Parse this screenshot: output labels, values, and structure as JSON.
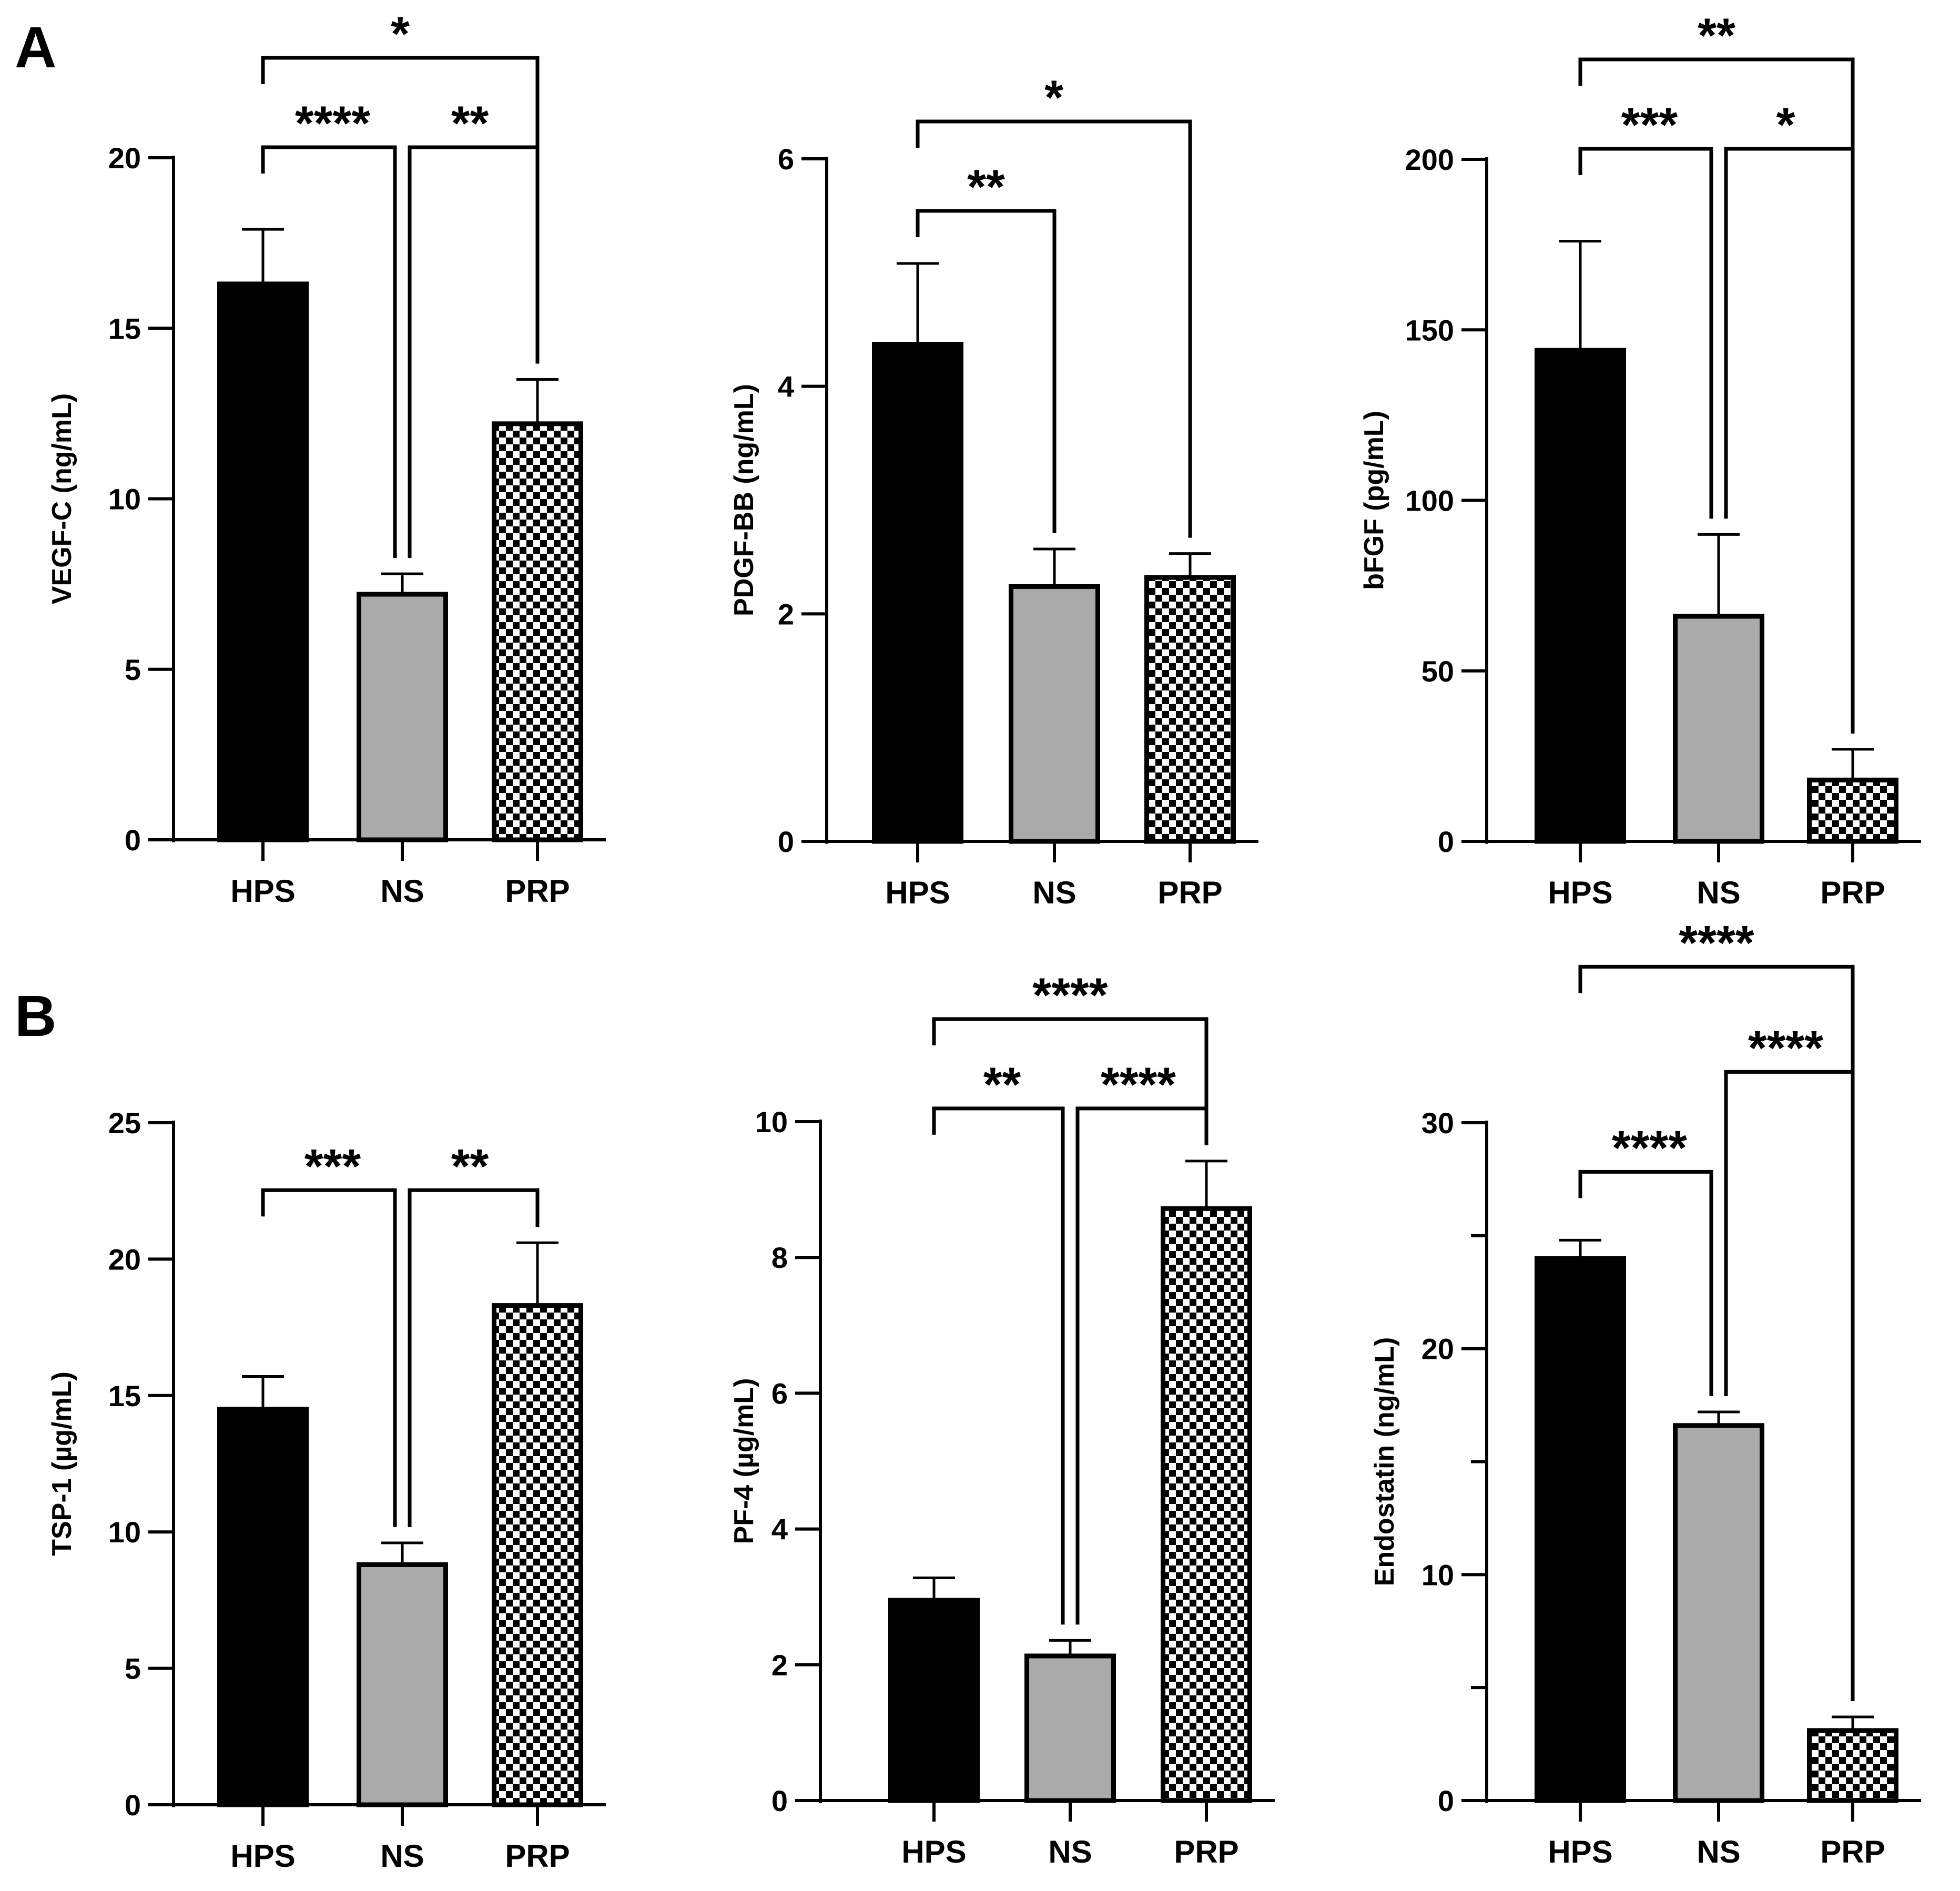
{
  "figure": {
    "panel_labels": [
      "A",
      "B"
    ]
  },
  "colors": {
    "HPS": "#000000",
    "NS": "#aaaaaa",
    "PRP_dark": "#000000",
    "PRP_light": "#ffffff",
    "stroke": "#000000"
  },
  "chart_data": [
    {
      "type": "bar",
      "panel": "A",
      "title": "",
      "ylabel": "VEGF-C (ng/mL)",
      "categories": [
        "HPS",
        "NS",
        "PRP"
      ],
      "values": [
        16.3,
        7.2,
        12.2
      ],
      "errors": [
        1.6,
        0.6,
        1.3
      ],
      "ylim": [
        0,
        20
      ],
      "yticks": [
        0,
        5,
        10,
        15,
        20
      ],
      "grid": false,
      "significance": [
        {
          "from": 0,
          "to": 1,
          "label": "****"
        },
        {
          "from": 1,
          "to": 2,
          "label": "**"
        },
        {
          "from": 0,
          "to": 2,
          "label": "*"
        }
      ]
    },
    {
      "type": "bar",
      "panel": "A",
      "title": "",
      "ylabel": "PDGF-BB (ng/mL)",
      "categories": [
        "HPS",
        "NS",
        "PRP"
      ],
      "values": [
        4.37,
        2.24,
        2.32
      ],
      "errors": [
        0.71,
        0.33,
        0.21
      ],
      "ylim": [
        0,
        6
      ],
      "yticks": [
        0,
        2,
        4,
        6
      ],
      "grid": false,
      "significance": [
        {
          "from": 0,
          "to": 1,
          "label": "**"
        },
        {
          "from": 0,
          "to": 2,
          "label": "*"
        }
      ]
    },
    {
      "type": "bar",
      "panel": "A",
      "title": "",
      "ylabel": "bFGF (pg/mL)",
      "categories": [
        "HPS",
        "NS",
        "PRP"
      ],
      "values": [
        144,
        66,
        18
      ],
      "errors": [
        32,
        24,
        9
      ],
      "ylim": [
        0,
        200
      ],
      "yticks": [
        0,
        50,
        100,
        150,
        200
      ],
      "grid": false,
      "significance": [
        {
          "from": 0,
          "to": 1,
          "label": "***"
        },
        {
          "from": 1,
          "to": 2,
          "label": "*"
        },
        {
          "from": 0,
          "to": 2,
          "label": "**"
        }
      ]
    },
    {
      "type": "bar",
      "panel": "B",
      "title": "",
      "ylabel": "TSP-1 (µg/mL)",
      "categories": [
        "HPS",
        "NS",
        "PRP"
      ],
      "values": [
        14.5,
        8.8,
        18.3
      ],
      "errors": [
        1.2,
        0.8,
        2.3
      ],
      "ylim": [
        0,
        25
      ],
      "yticks": [
        0,
        5,
        10,
        15,
        20,
        25
      ],
      "grid": false,
      "significance": [
        {
          "from": 0,
          "to": 1,
          "label": "***"
        },
        {
          "from": 1,
          "to": 2,
          "label": "**"
        }
      ]
    },
    {
      "type": "bar",
      "panel": "B",
      "title": "",
      "ylabel": "PF-4 (µg/mL)",
      "categories": [
        "HPS",
        "NS",
        "PRP"
      ],
      "values": [
        2.95,
        2.13,
        8.72
      ],
      "errors": [
        0.33,
        0.23,
        0.7
      ],
      "ylim": [
        0,
        10
      ],
      "yticks": [
        0,
        2,
        4,
        6,
        8,
        10
      ],
      "grid": false,
      "significance": [
        {
          "from": 0,
          "to": 1,
          "label": "**"
        },
        {
          "from": 1,
          "to": 2,
          "label": "****"
        },
        {
          "from": 0,
          "to": 2,
          "label": "****"
        }
      ]
    },
    {
      "type": "bar",
      "panel": "B",
      "title": "",
      "ylabel": "Endostatin (ng/mL)",
      "categories": [
        "HPS",
        "NS",
        "PRP"
      ],
      "values": [
        24.0,
        16.6,
        3.1
      ],
      "errors": [
        0.8,
        0.6,
        0.6
      ],
      "ylim": [
        0,
        30
      ],
      "yticks": [
        0,
        10,
        20,
        30
      ],
      "minor_yticks": [
        5,
        15,
        25
      ],
      "grid": false,
      "significance": [
        {
          "from": 0,
          "to": 1,
          "label": "****"
        },
        {
          "from": 1,
          "to": 2,
          "label": "****"
        },
        {
          "from": 0,
          "to": 2,
          "label": "****"
        }
      ]
    }
  ]
}
